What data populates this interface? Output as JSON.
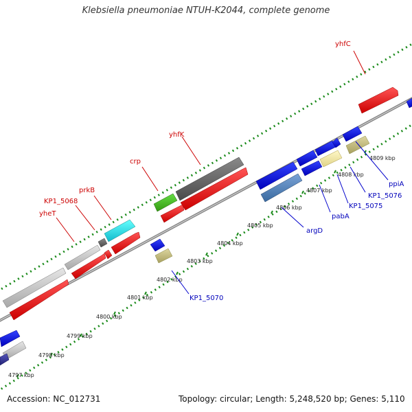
{
  "title": "Klebsiella pneumoniae NTUH-K2044, complete genome",
  "footer": {
    "accession": "Accession: NC_012731",
    "summary": "Topology: circular; Length: 5,248,520 bp; Genes: 5,110"
  },
  "colors": {
    "forward_backbone": "#808080",
    "ticks": "#1a8a1a",
    "gray": "#c0c0c0",
    "dark_gray": "#666666",
    "red": "#ff0000",
    "green": "#44bb22",
    "cyan": "#22dddd",
    "blue": "#0000ee",
    "steel_blue": "#4f7fb8",
    "khaki": "#c8c080",
    "pale_yellow": "#f0e8a0",
    "navy": "#333399"
  },
  "kbp_labels": [
    "4797 kbp",
    "4798 kbp",
    "4799 kbp",
    "4800 kbp",
    "4801 kbp",
    "4802 kbp",
    "4803 kbp",
    "4804 kbp",
    "4805 kbp",
    "4806 kbp",
    "4807 kbp",
    "4808 kbp",
    "4809 kbp"
  ],
  "forward_gene_labels": [
    "yhfC",
    "yhfK",
    "crp",
    "prkB",
    "KP1_5068",
    "yheT"
  ],
  "reverse_gene_labels": [
    "ppiA",
    "KP1_5076",
    "KP1_5075",
    "pabA",
    "argD",
    "KP1_5070"
  ]
}
